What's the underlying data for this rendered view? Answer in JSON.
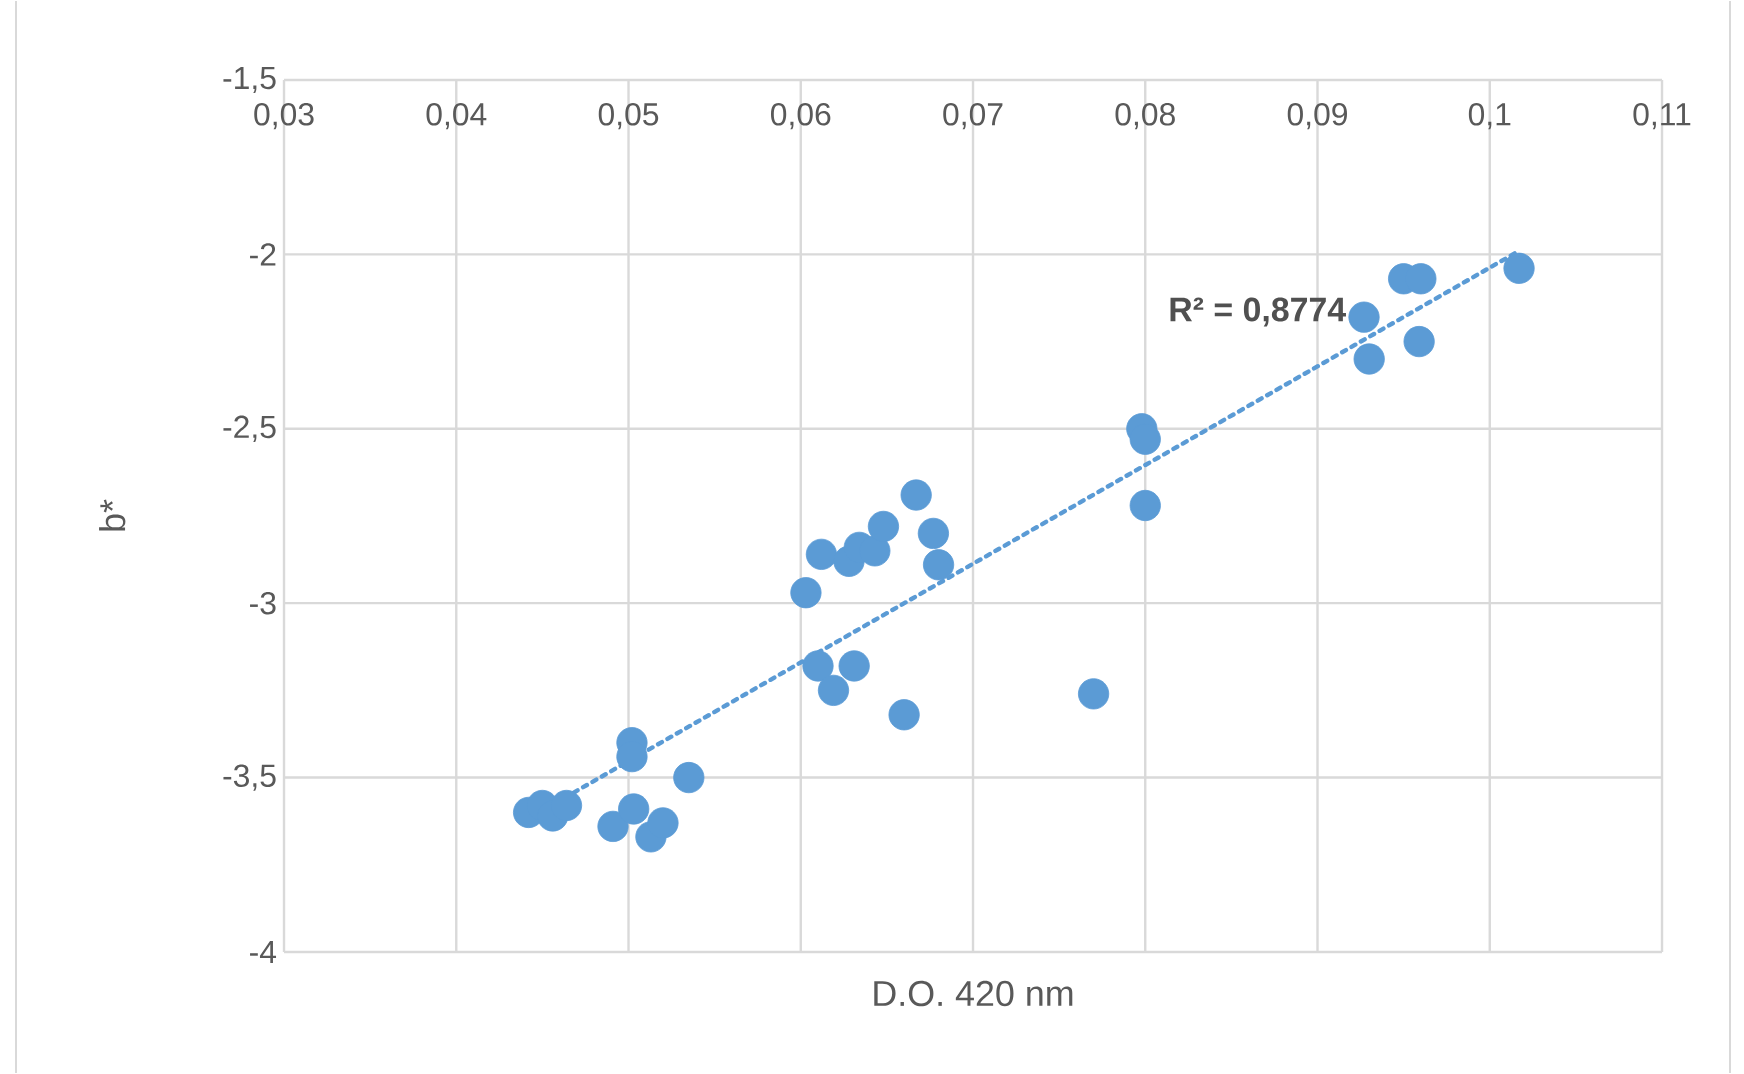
{
  "chart_data": {
    "type": "scatter",
    "xlabel": "D.O. 420 nm",
    "ylabel": "b*",
    "xlim": [
      0.03,
      0.11
    ],
    "ylim": [
      -4,
      -1.5
    ],
    "xticks": [
      {
        "value": 0.03,
        "label": "0,03"
      },
      {
        "value": 0.04,
        "label": "0,04"
      },
      {
        "value": 0.05,
        "label": "0,05"
      },
      {
        "value": 0.06,
        "label": "0,06"
      },
      {
        "value": 0.07,
        "label": "0,07"
      },
      {
        "value": 0.08,
        "label": "0,08"
      },
      {
        "value": 0.09,
        "label": "0,09"
      },
      {
        "value": 0.1,
        "label": "0,1"
      },
      {
        "value": 0.11,
        "label": "0,11"
      }
    ],
    "yticks": [
      -4,
      {
        "value": -3.5,
        "label": "-3,5"
      },
      -3,
      {
        "value": -2.5,
        "label": "-2,5"
      },
      -2,
      {
        "value": -1.5,
        "label": "-1,5"
      }
    ],
    "grid": true,
    "annotations": [
      "R² = 0,8774"
    ],
    "series": [
      {
        "color": "#5b9bd5",
        "marker": "circle",
        "x": [
          0.0442,
          0.045,
          0.0456,
          0.0464,
          0.0491,
          0.0503,
          0.0502,
          0.0502,
          0.0513,
          0.052,
          0.0535,
          0.0603,
          0.0612,
          0.061,
          0.0619,
          0.0628,
          0.0631,
          0.0634,
          0.0643,
          0.0648,
          0.066,
          0.0667,
          0.0677,
          0.068,
          0.077,
          0.0798,
          0.08,
          0.08,
          0.0927,
          0.093,
          0.095,
          0.096,
          0.0959,
          0.1017
        ],
        "values": [
          -3.6,
          -3.58,
          -3.61,
          -3.58,
          -3.64,
          -3.59,
          -3.4,
          -3.44,
          -3.67,
          -3.63,
          -3.5,
          -2.97,
          -2.86,
          -3.18,
          -3.25,
          -2.88,
          -3.18,
          -2.84,
          -2.85,
          -2.78,
          -3.32,
          -2.69,
          -2.8,
          -2.89,
          -3.26,
          -2.5,
          -2.53,
          -2.72,
          -2.18,
          -2.3,
          -2.07,
          -2.07,
          -2.25,
          -2.04
        ]
      },
      {
        "type": "line",
        "color": "#5b9bd5",
        "marker": "none",
        "line_style": "dotted",
        "x": [
          0.0441,
          0.1017
        ],
        "values": [
          -3.62,
          -1.99
        ]
      }
    ]
  }
}
